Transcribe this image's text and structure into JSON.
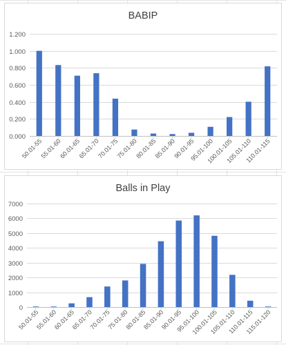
{
  "chart_data": [
    {
      "type": "bar",
      "title": "BABIP",
      "xlabel": "",
      "ylabel": "",
      "ylim": [
        0,
        1.2
      ],
      "ytick_values": [
        0,
        0.2,
        0.4,
        0.6,
        0.8,
        1.0,
        1.2
      ],
      "ytick_labels": [
        "0.000",
        "0.200",
        "0.400",
        "0.600",
        "0.800",
        "1.000",
        "1.200"
      ],
      "grid": true,
      "legend": "none",
      "bar_color": "#4472c4",
      "categories": [
        "50.01-55",
        "55.01-60",
        "60.01-65",
        "65.01-70",
        "70.01-75",
        "75.01-80",
        "80.01-85",
        "85.01-90",
        "90.01-95",
        "95.01-100",
        "100.01-105",
        "105.01-110",
        "110.01-115"
      ],
      "values": [
        1.0,
        0.833,
        0.708,
        0.737,
        0.438,
        0.075,
        0.028,
        0.022,
        0.037,
        0.107,
        0.222,
        0.402,
        0.818
      ]
    },
    {
      "type": "bar",
      "title": "Balls in Play",
      "xlabel": "",
      "ylabel": "",
      "ylim": [
        0,
        7000
      ],
      "ytick_values": [
        0,
        1000,
        2000,
        3000,
        4000,
        5000,
        6000,
        7000
      ],
      "ytick_labels": [
        "0",
        "1000",
        "2000",
        "3000",
        "4000",
        "5000",
        "6000",
        "7000"
      ],
      "grid": true,
      "legend": "none",
      "bar_color": "#4472c4",
      "categories": [
        "50.01-55",
        "55.01-60",
        "60.01-65",
        "65.01-70",
        "70.01-75",
        "75.01-80",
        "80.01-85",
        "85.01-90",
        "90.01-95",
        "95.01-100",
        "100.01-105",
        "105.01-110",
        "110.01-115",
        "115.01-120"
      ],
      "values": [
        5,
        10,
        250,
        670,
        1390,
        1800,
        2920,
        4450,
        5850,
        6200,
        4820,
        2180,
        430,
        20
      ]
    }
  ]
}
